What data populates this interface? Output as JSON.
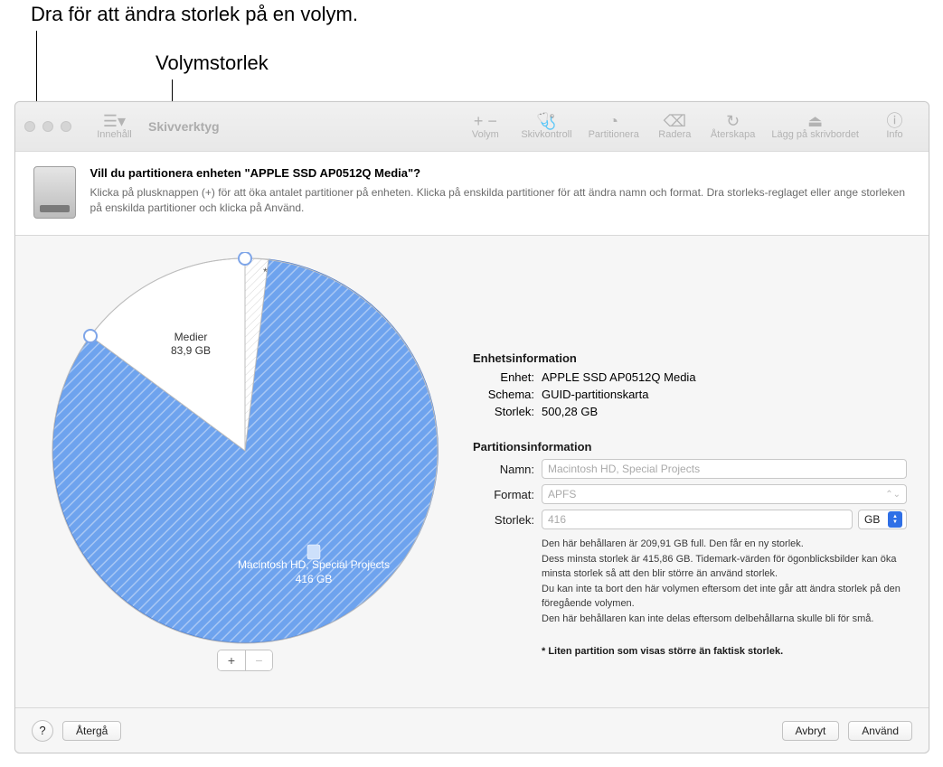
{
  "callouts": {
    "drag": "Dra för att ändra storlek på en volym.",
    "volsize": "Volymstorlek"
  },
  "toolbar": {
    "title": "Skivverktyg",
    "sidebar_label": "Innehåll",
    "volume_label": "Volym",
    "firstaid_label": "Skivkontroll",
    "partition_label": "Partitionera",
    "erase_label": "Radera",
    "restore_label": "Återskapa",
    "mount_label": "Lägg på skrivbordet",
    "info_label": "Info"
  },
  "sheet": {
    "title": "Vill du partitionera enheten \"APPLE SSD AP0512Q Media\"?",
    "subtitle": "Klicka på plusknappen (+) för att öka antalet partitioner på enheten. Klicka på enskilda partitioner för att ändra namn och format. Dra storleks-reglaget eller ange storleken på enskilda partitioner och klicka på Använd."
  },
  "pie": {
    "background": "#ffffff",
    "border": "#bdbdbd",
    "slices": [
      {
        "name": "Macintosh HD, Special Projects",
        "size_label": "416 GB",
        "value": 416,
        "color": "#6ea3ee",
        "pattern": true,
        "label_color": "#ffffff"
      },
      {
        "name": "Medier",
        "size_label": "83,9 GB",
        "value": 83.9,
        "color": "#ffffff",
        "pattern": false,
        "label_color": "#333333"
      }
    ],
    "tiny_marker": "*"
  },
  "device_info": {
    "heading": "Enhetsinformation",
    "rows": [
      {
        "label": "Enhet:",
        "value": "APPLE SSD AP0512Q Media"
      },
      {
        "label": "Schema:",
        "value": "GUID-partitionskarta"
      },
      {
        "label": "Storlek:",
        "value": "500,28 GB"
      }
    ]
  },
  "partition_info": {
    "heading": "Partitionsinformation",
    "name_label": "Namn:",
    "name_value": "Macintosh HD, Special Projects",
    "format_label": "Format:",
    "format_value": "APFS",
    "size_label": "Storlek:",
    "size_value": "416",
    "size_unit": "GB",
    "help": "Den här behållaren är 209,91 GB full. Den får en ny storlek.\nDess minsta storlek är 415,86 GB. Tidemark-värden för ögonblicksbilder kan öka minsta storlek så att den blir större än använd storlek.\nDu kan inte ta bort den här volymen eftersom det inte går att ändra storlek på den föregående volymen.\nDen här behållaren kan inte delas eftersom delbehållarna skulle bli för små.",
    "footnote": "* Liten partition som visas större än faktisk storlek."
  },
  "footer": {
    "help": "?",
    "revert": "Återgå",
    "cancel": "Avbryt",
    "apply": "Använd"
  },
  "colors": {
    "window_bg": "#f6f6f6",
    "accent_blue": "#6ea3ee",
    "stepper_blue": "#2f6fe6"
  }
}
